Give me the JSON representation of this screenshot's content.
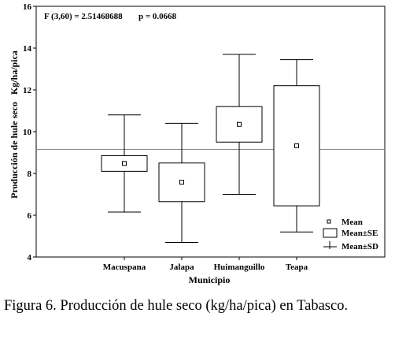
{
  "chart_data": {
    "type": "boxplot",
    "annotation": {
      "f_stat": "F (3,60) = 2.51468688",
      "p_value": "p = 0.0668"
    },
    "xlabel": "Municipio",
    "ylabel": "Producción de hule seco   Kg/ha/pica",
    "ylim": [
      4,
      16
    ],
    "yticks": [
      4,
      6,
      8,
      10,
      12,
      14,
      16
    ],
    "reference_line": 9.15,
    "categories": [
      "Macuspana",
      "Jalapa",
      "Huimanguillo",
      "Teapa"
    ],
    "mean": [
      8.48,
      7.58,
      10.35,
      9.33
    ],
    "se_low": [
      8.1,
      6.65,
      9.5,
      6.45
    ],
    "se_high": [
      8.85,
      8.5,
      11.2,
      12.2
    ],
    "sd_low": [
      6.15,
      4.7,
      7.0,
      5.2
    ],
    "sd_high": [
      10.8,
      10.4,
      13.7,
      13.45
    ],
    "legend": {
      "mean": "Mean",
      "se": "Mean±SE",
      "sd": "Mean±SD"
    }
  },
  "caption": "Figura 6. Producción de hule seco (kg/ha/pica) en Tabasco."
}
